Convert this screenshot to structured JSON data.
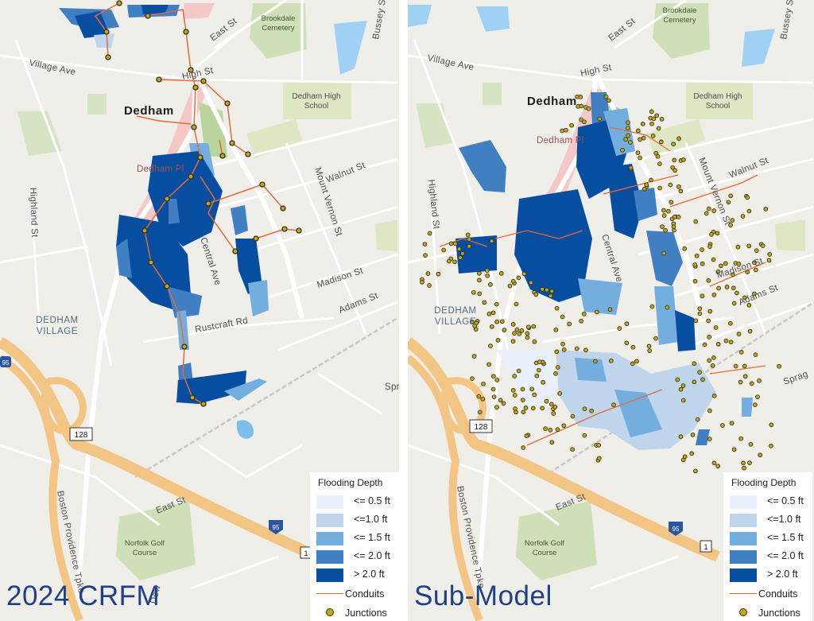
{
  "colors": {
    "depth_0_5": "#eaf0fc",
    "depth_1_0": "#bfd5ec",
    "depth_1_5": "#74aede",
    "depth_2_0": "#3f7fc2",
    "depth_gt_2": "#084ea0",
    "conduit": "#e46a3a",
    "junction": "#c9a800",
    "label": "#1f3f86"
  },
  "map_labels": {
    "town": "Dedham",
    "village": [
      "DEDHAM",
      "VILLAGE"
    ],
    "plaza": "Dedham Pl",
    "cemetery": [
      "Brookdale",
      "Cemetery"
    ],
    "school": [
      "Dedham High",
      "School"
    ],
    "golf": [
      "Norfolk Golf",
      "Course"
    ],
    "streets": {
      "east_st": "East St",
      "bussey_st": "Bussey St",
      "village_ave": "Village Ave",
      "high_st": "High St",
      "walnut_st": "Walnut St",
      "mount_vernon_st": "Mount Vernon St",
      "highland_st": "Highland St",
      "central_ave": "Central Ave",
      "madison_st": "Madison St",
      "adams_st": "Adams St",
      "rustcraft_rd": "Rustcraft Rd",
      "boston_providence_tpke": "Boston Providence Tpke",
      "sprague": "Sprag",
      "east_st_south": "East St",
      "dow": "Dow"
    },
    "shields": {
      "i95": "95",
      "rt128": "128",
      "rt1": "1"
    }
  },
  "panels": [
    {
      "label": "2024 CRFM"
    },
    {
      "label": "Sub-Model"
    }
  ],
  "legend": {
    "title": "Flooding Depth",
    "items": [
      {
        "label": "<= 0.5 ft",
        "color": "#eaf0fc"
      },
      {
        "label": "<=1.0 ft",
        "color": "#bfd5ec"
      },
      {
        "label": "<= 1.5 ft",
        "color": "#74aede"
      },
      {
        "label": "<= 2.0 ft",
        "color": "#3f7fc2"
      },
      {
        "label": "> 2.0 ft",
        "color": "#084ea0"
      }
    ],
    "conduits": "Conduits",
    "junctions": "Junctions"
  }
}
